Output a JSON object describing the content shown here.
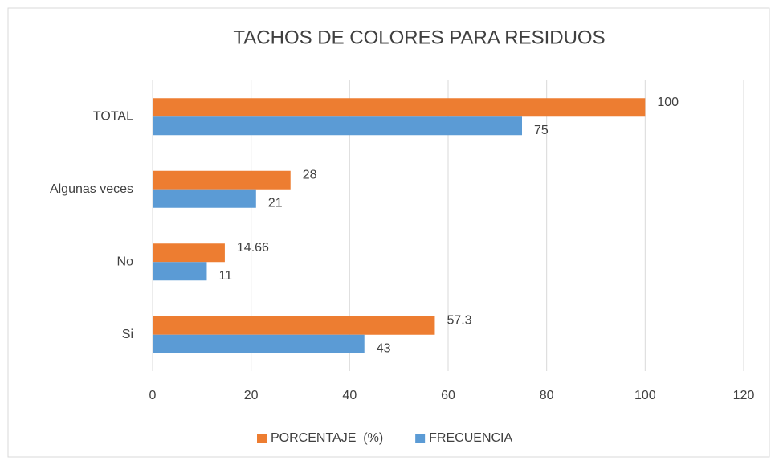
{
  "chart_data": {
    "type": "bar",
    "orientation": "horizontal",
    "title": "TACHOS DE COLORES PARA RESIDUOS",
    "categories": [
      "Si",
      "No",
      "Algunas veces",
      "TOTAL"
    ],
    "series": [
      {
        "name": "PORCENTAJE  (%)",
        "color": "#ed7d31",
        "values": [
          57.3,
          14.66,
          28,
          100
        ]
      },
      {
        "name": "FRECUENCIA",
        "color": "#5b9bd5",
        "values": [
          43,
          11,
          21,
          75
        ]
      }
    ],
    "xlim": [
      0,
      120
    ],
    "xticks": [
      0,
      20,
      40,
      60,
      80,
      100,
      120
    ],
    "grid": true,
    "legend": "bottom"
  }
}
